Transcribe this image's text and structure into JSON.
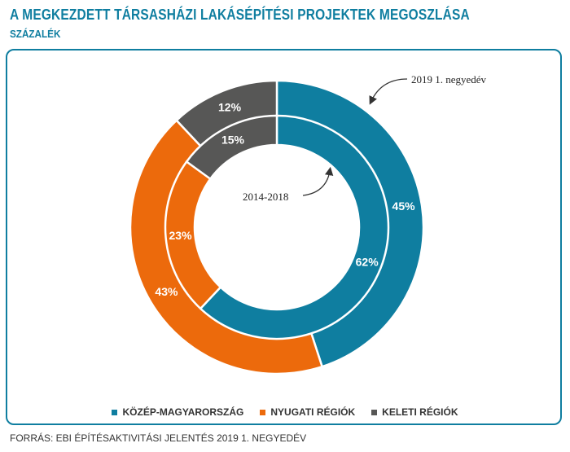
{
  "title": "A MEGKEZDETT TÁRSASHÁZI LAKÁSÉPÍTÉSI PROJEKTEK MEGOSZLÁSA",
  "subtitle": "SZÁZALÉK",
  "source": "FORRÁS: EBI ÉPÍTÉSAKTIVITÁSI JELENTÉS 2019 1. NEGYEDÉV",
  "chart_data": {
    "type": "donut",
    "categories": [
      "KÖZÉP-MAGYARORSZÁG",
      "NYUGATI RÉGIÓK",
      "KELETI RÉGIÓK"
    ],
    "colors": [
      "#0f7ea0",
      "#ec6a0c",
      "#575756"
    ],
    "series": [
      {
        "name": "2019 1. negyedév",
        "ring": "outer",
        "values": [
          45,
          43,
          12
        ]
      },
      {
        "name": "2014-2018",
        "ring": "inner",
        "values": [
          62,
          23,
          15
        ]
      }
    ],
    "value_suffix": "%"
  }
}
